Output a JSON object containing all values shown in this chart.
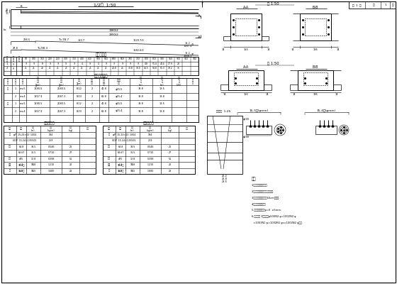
{
  "bg_color": "#ffffff",
  "line_color": "#000000",
  "title_half_span": "1/2跨  1:50",
  "label_AA": "A-A",
  "label_BB": "B-B",
  "scale_zhu": "樱 1:50",
  "page_text": "第 1 页  共 1 页",
  "t1_title": "石高控制表",
  "t2_title": "预应力锯束表",
  "t3_title": "一端材料表",
  "t4_title": "一端材料表",
  "notes_title": "备注"
}
